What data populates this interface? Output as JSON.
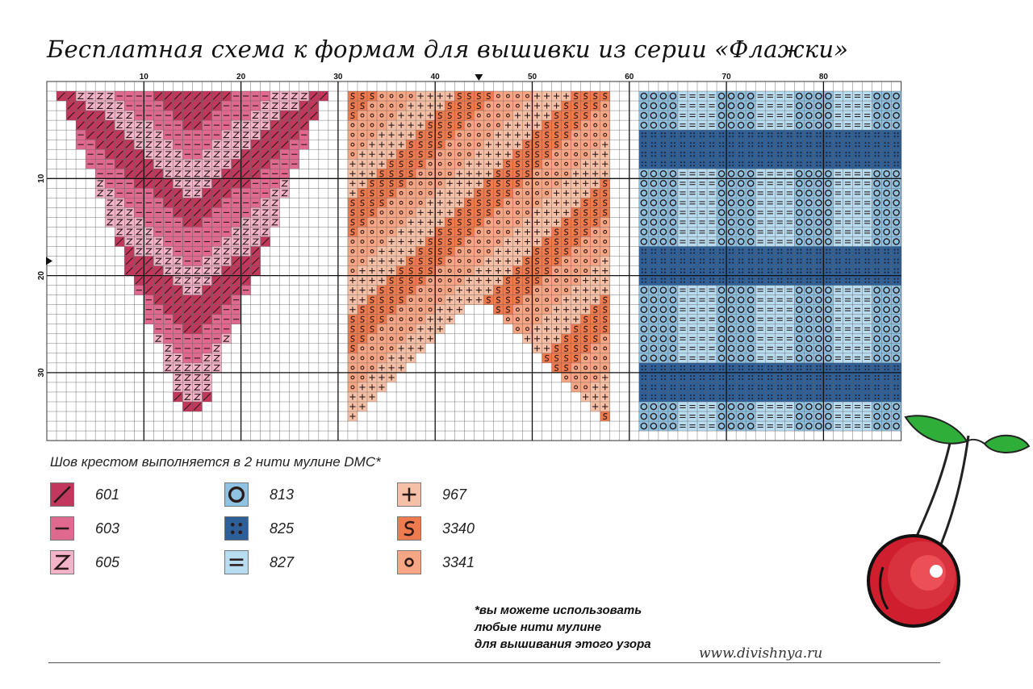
{
  "title": "Бесплатная схема к формам для вышивки из серии «Флажки»",
  "ruler": {
    "x_labels": [
      "10",
      "20",
      "30",
      "40",
      "50",
      "60",
      "70",
      "80"
    ],
    "y_labels": [
      "10",
      "20",
      "30"
    ]
  },
  "legend": {
    "heading": "Шов крестом выполняется в 2 нити мулине DMC*",
    "items": [
      {
        "code": "601",
        "color": "#c2385c",
        "symbol": "diagonal",
        "name": "legend-601"
      },
      {
        "code": "603",
        "color": "#e0698f",
        "symbol": "dash",
        "name": "legend-603"
      },
      {
        "code": "605",
        "color": "#f3b3c8",
        "symbol": "z",
        "name": "legend-605"
      },
      {
        "code": "813",
        "color": "#8ec3e3",
        "symbol": "ring",
        "name": "legend-813"
      },
      {
        "code": "825",
        "color": "#2d5f99",
        "symbol": "dots",
        "name": "legend-825"
      },
      {
        "code": "827",
        "color": "#b9ddf0",
        "symbol": "equals",
        "name": "legend-827"
      },
      {
        "code": "967",
        "color": "#f6c0a6",
        "symbol": "plus",
        "name": "legend-967"
      },
      {
        "code": "3340",
        "color": "#ee7a4f",
        "symbol": "s",
        "name": "legend-3340"
      },
      {
        "code": "3341",
        "color": "#f6a585",
        "symbol": "circle",
        "name": "legend-3341"
      }
    ]
  },
  "note": {
    "line1": "*вы можете использовать",
    "line2": "любые нити мулине",
    "line3": "для вышивания этого узора"
  },
  "site": "www.divishnya.ru"
}
